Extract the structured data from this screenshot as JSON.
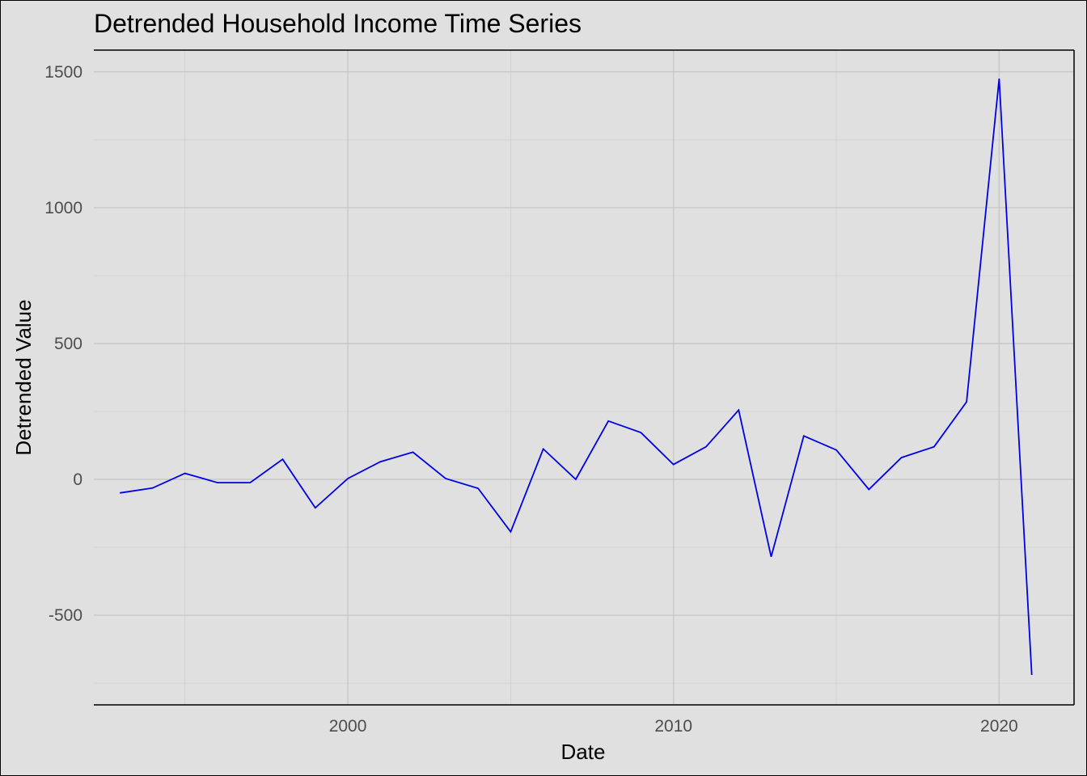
{
  "chart_data": {
    "type": "line",
    "title": "Detrended Household Income Time Series",
    "xlabel": "Date",
    "ylabel": "Detrended Value",
    "xlim": [
      1992.2,
      2022.3
    ],
    "ylim": [
      -830,
      1580
    ],
    "xticks": [
      2000,
      2010,
      2020
    ],
    "xtick_labels": [
      "2000",
      "2010",
      "2020"
    ],
    "yticks": [
      -500,
      0,
      500,
      1000,
      1500
    ],
    "ytick_labels": [
      "-500",
      "0",
      "500",
      "1000",
      "1500"
    ],
    "grid": true,
    "line_color": "#0000e6",
    "series": [
      {
        "x": [
          1993,
          1994,
          1995,
          1996,
          1997,
          1998,
          1999,
          2000,
          2001,
          2002,
          2003,
          2004,
          2005,
          2006,
          2007,
          2008,
          2009,
          2010,
          2011,
          2012,
          2013,
          2014,
          2015,
          2016,
          2017,
          2018,
          2019,
          2020,
          2021
        ],
        "values": [
          -50,
          -32,
          22,
          -12,
          -12,
          74,
          -105,
          3,
          65,
          100,
          3,
          -33,
          -193,
          112,
          0,
          215,
          172,
          55,
          120,
          255,
          -285,
          160,
          108,
          -37,
          80,
          120,
          285,
          1475,
          -720
        ]
      }
    ]
  }
}
